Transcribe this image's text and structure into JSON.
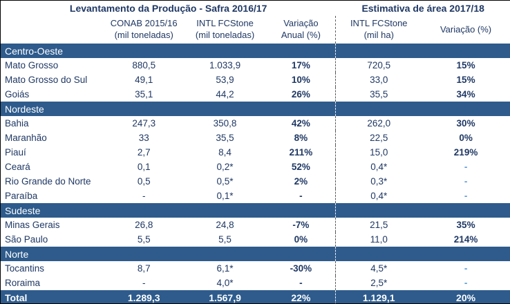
{
  "table": {
    "title_left": "Levantamento da Produção - Safra 2016/17",
    "title_right": "Estimativa de área 2017/18",
    "headers": {
      "conab_line1": "CONAB 2015/16",
      "conab_line2": "(mil toneladas)",
      "intl_ton_line1": "INTL FCStone",
      "intl_ton_line2": "(mil toneladas)",
      "var_anual_line1": "Variação",
      "var_anual_line2": "Anual (%)",
      "intl_ha_line1": "INTL FCStone",
      "intl_ha_line2": "(mil ha)",
      "var_pct": "Variação (%)"
    },
    "sections": [
      {
        "name": "Centro-Oeste",
        "rows": [
          {
            "state": "Mato Grosso",
            "conab": "880,5",
            "intl_ton": "1.033,9",
            "var_anual": "17%",
            "intl_ha": "720,5",
            "var_pct": "15%"
          },
          {
            "state": "Mato Grosso do Sul",
            "conab": "49,1",
            "intl_ton": "53,9",
            "var_anual": "10%",
            "intl_ha": "33,0",
            "var_pct": "15%"
          },
          {
            "state": "Goiás",
            "conab": "35,1",
            "intl_ton": "44,2",
            "var_anual": "26%",
            "intl_ha": "35,5",
            "var_pct": "34%"
          }
        ]
      },
      {
        "name": "Nordeste",
        "rows": [
          {
            "state": "Bahia",
            "conab": "247,3",
            "intl_ton": "350,8",
            "var_anual": "42%",
            "intl_ha": "262,0",
            "var_pct": "30%"
          },
          {
            "state": "Maranhão",
            "conab": "33",
            "intl_ton": "35,5",
            "var_anual": "8%",
            "intl_ha": "22,5",
            "var_pct": "0%"
          },
          {
            "state": "Piauí",
            "conab": "2,7",
            "intl_ton": "8,4",
            "var_anual": "211%",
            "intl_ha": "15,0",
            "var_pct": "219%"
          },
          {
            "state": "Ceará",
            "conab": "0,1",
            "intl_ton": "0,2*",
            "var_anual": "52%",
            "intl_ha": "0,4*",
            "var_pct": "-"
          },
          {
            "state": "Rio Grande do Norte",
            "conab": "0,5",
            "intl_ton": "0,5*",
            "var_anual": "2%",
            "intl_ha": "0,3*",
            "var_pct": "-"
          },
          {
            "state": "Paraíba",
            "conab": "-",
            "intl_ton": "0,1*",
            "var_anual": "-",
            "intl_ha": "0,4*",
            "var_pct": "-"
          }
        ]
      },
      {
        "name": "Sudeste",
        "rows": [
          {
            "state": "Minas Gerais",
            "conab": "26,8",
            "intl_ton": "24,8",
            "var_anual": "-7%",
            "intl_ha": "21,5",
            "var_pct": "35%"
          },
          {
            "state": "São Paulo",
            "conab": "5,5",
            "intl_ton": "5,5",
            "var_anual": "0%",
            "intl_ha": "11,0",
            "var_pct": "214%"
          }
        ]
      },
      {
        "name": "Norte",
        "rows": [
          {
            "state": "Tocantins",
            "conab": "8,7",
            "intl_ton": "6,1*",
            "var_anual": "-30%",
            "intl_ha": "4,5*",
            "var_pct": "-"
          },
          {
            "state": "Roraima",
            "conab": "-",
            "intl_ton": "4,0*",
            "var_anual": "-",
            "intl_ha": "2,5*",
            "var_pct": "-"
          }
        ]
      }
    ],
    "total": {
      "state": "Total",
      "conab": "1.289,3",
      "intl_ton": "1.567,9",
      "var_anual": "22%",
      "intl_ha": "1.129,1",
      "var_pct": "20%"
    },
    "colors": {
      "section_bar": "#2E5B8C",
      "text_navy": "#1F3864",
      "muted_dash_blue": "#5B9BD5",
      "divider_gray": "#595959",
      "outer_border": "#000000",
      "bar_text": "#FFFFFF"
    }
  }
}
